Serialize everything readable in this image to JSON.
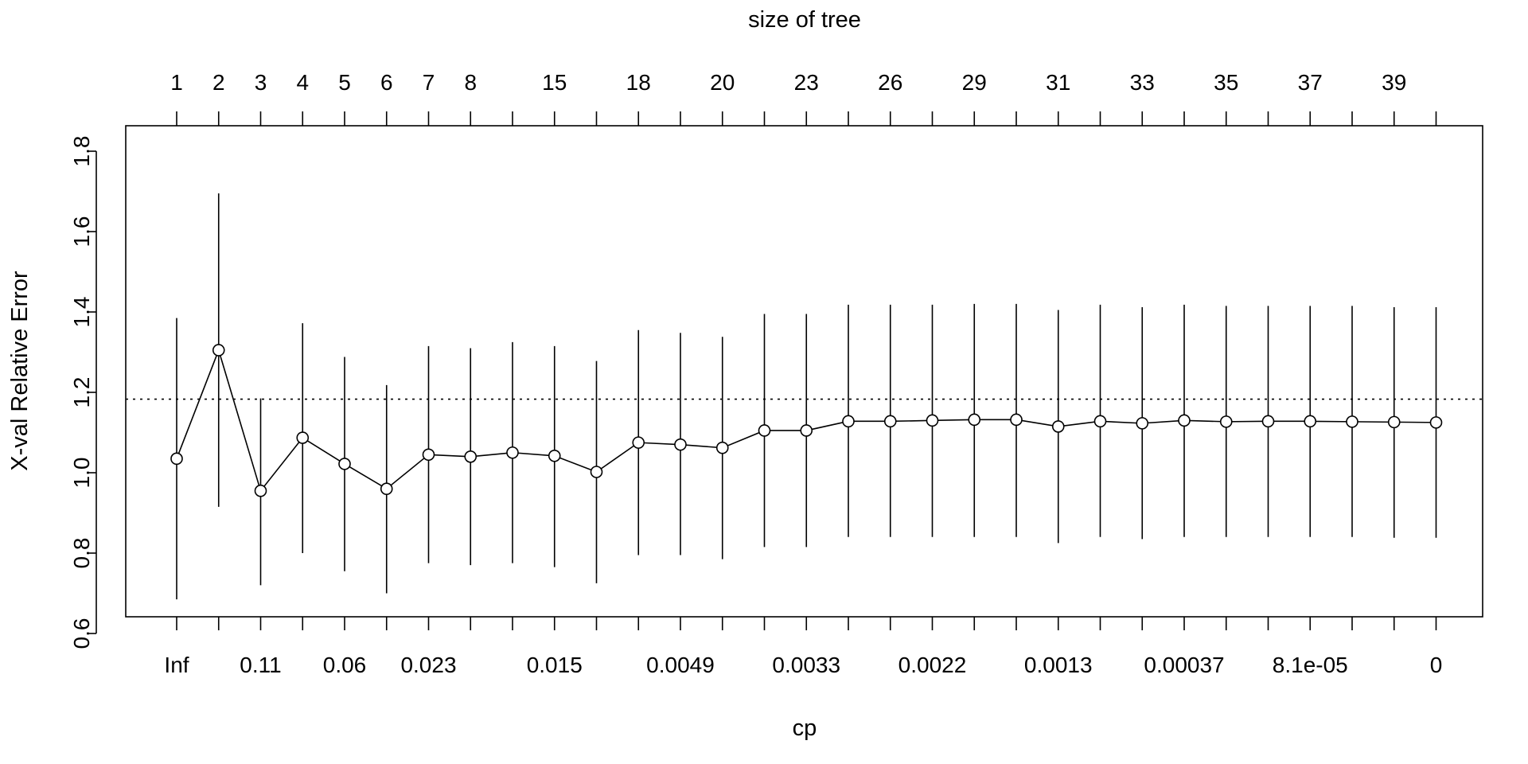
{
  "chart_data": {
    "type": "scatter",
    "top_axis_title": "size of tree",
    "xlabel": "cp",
    "ylabel": "X-val Relative Error",
    "ylim": [
      0.58,
      1.83
    ],
    "y_ticks": [
      "0.6",
      "0.8",
      "1.0",
      "1.2",
      "1.4",
      "1.6",
      "1.8"
    ],
    "y_tick_values": [
      0.6,
      0.8,
      1.0,
      1.2,
      1.4,
      1.6,
      1.8
    ],
    "reference_line": {
      "y": 1.183,
      "style": "dotted"
    },
    "top_tick_labels": [
      "1",
      "2",
      "3",
      "4",
      "5",
      "6",
      "7",
      "8",
      "",
      "15",
      "",
      "18",
      "",
      "20",
      "",
      "23",
      "",
      "26",
      "",
      "29",
      "",
      "31",
      "",
      "33",
      "",
      "35",
      "",
      "37",
      "",
      "39",
      ""
    ],
    "bottom_tick_labels": [
      "Inf",
      "",
      "0.11",
      "",
      "0.06",
      "",
      "0.023",
      "",
      "",
      "0.015",
      "",
      "",
      "0.0049",
      "",
      "",
      "0.0033",
      "",
      "",
      "0.0022",
      "",
      "",
      "0.0013",
      "",
      "",
      "0.00037",
      "",
      "",
      "8.1e-05",
      "",
      "",
      "0"
    ],
    "series": [
      {
        "values": [
          1.035,
          1.305,
          0.955,
          1.087,
          1.022,
          0.96,
          1.045,
          1.04,
          1.05,
          1.042,
          1.002,
          1.075,
          1.07,
          1.062,
          1.105,
          1.105,
          1.128,
          1.128,
          1.13,
          1.132,
          1.132,
          1.115,
          1.128,
          1.123,
          1.13,
          1.127,
          1.128,
          1.128,
          1.127,
          1.126,
          1.125
        ],
        "lower": [
          0.685,
          0.915,
          0.72,
          0.8,
          0.755,
          0.7,
          0.775,
          0.77,
          0.775,
          0.765,
          0.725,
          0.795,
          0.795,
          0.785,
          0.815,
          0.815,
          0.84,
          0.84,
          0.84,
          0.84,
          0.84,
          0.825,
          0.84,
          0.835,
          0.84,
          0.84,
          0.84,
          0.84,
          0.84,
          0.838,
          0.838
        ],
        "upper": [
          1.385,
          1.695,
          1.185,
          1.372,
          1.288,
          1.218,
          1.315,
          1.31,
          1.325,
          1.315,
          1.278,
          1.355,
          1.348,
          1.338,
          1.395,
          1.395,
          1.418,
          1.418,
          1.418,
          1.42,
          1.42,
          1.405,
          1.418,
          1.412,
          1.418,
          1.415,
          1.415,
          1.415,
          1.415,
          1.412,
          1.412
        ]
      }
    ]
  }
}
